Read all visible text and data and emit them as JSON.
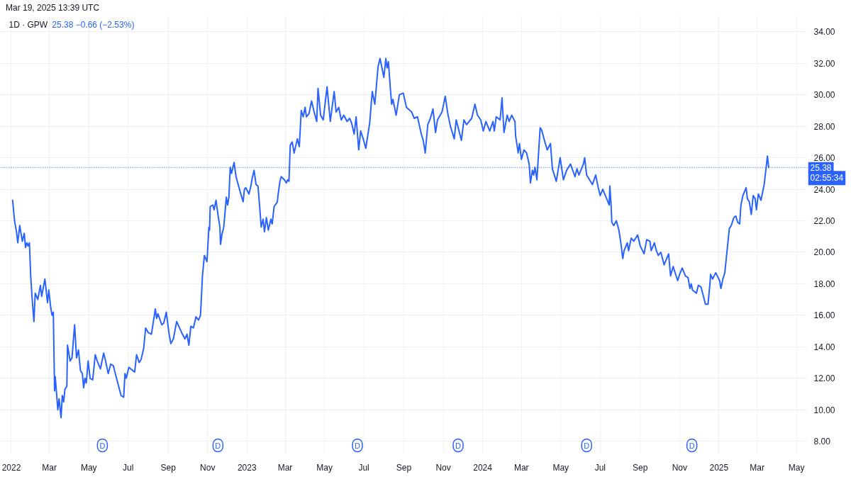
{
  "chart_data": {
    "type": "line",
    "title": "1D · GPW",
    "subtitle": "25.38 −0.66 (−2.53%)",
    "annotations": [
      "Mar 19, 2025 13:39 UTC",
      "02:55:34",
      {
        "text": "D",
        "x": "2022-05-22"
      },
      {
        "text": "D",
        "x": "2022-11-17"
      },
      {
        "text": "D",
        "x": "2023-06-21"
      },
      {
        "text": "D",
        "x": "2023-11-24"
      },
      {
        "text": "D",
        "x": "2024-06-10"
      },
      {
        "text": "D",
        "x": "2024-11-20"
      }
    ],
    "x": [
      "2022-01-03",
      "2022-01-06",
      "2022-01-09",
      "2022-01-11",
      "2022-01-14",
      "2022-01-18",
      "2022-01-21",
      "2022-01-23",
      "2022-01-25",
      "2022-01-27",
      "2022-01-29",
      "2022-01-31",
      "2022-02-02",
      "2022-02-05",
      "2022-02-07",
      "2022-02-11",
      "2022-02-15",
      "2022-02-17",
      "2022-02-22",
      "2022-02-26",
      "2022-02-28",
      "2022-03-03",
      "2022-03-05",
      "2022-03-07",
      "2022-03-09",
      "2022-03-10",
      "2022-03-14",
      "2022-03-16",
      "2022-03-19",
      "2022-03-21",
      "2022-03-23",
      "2022-03-25",
      "2022-03-28",
      "2022-03-29",
      "2022-04-02",
      "2022-04-05",
      "2022-04-09",
      "2022-04-12",
      "2022-04-15",
      "2022-04-18",
      "2022-04-21",
      "2022-04-23",
      "2022-04-25",
      "2022-04-27",
      "2022-04-30",
      "2022-05-03",
      "2022-05-07",
      "2022-05-11",
      "2022-05-14",
      "2022-05-19",
      "2022-05-24",
      "2022-05-27",
      "2022-05-31",
      "2022-06-04",
      "2022-06-08",
      "2022-06-11",
      "2022-06-20",
      "2022-06-24",
      "2022-06-26",
      "2022-06-28",
      "2022-07-02",
      "2022-07-11",
      "2022-07-14",
      "2022-07-18",
      "2022-07-21",
      "2022-07-25",
      "2022-07-28",
      "2022-08-01",
      "2022-08-06",
      "2022-08-09",
      "2022-08-12",
      "2022-08-14",
      "2022-08-16",
      "2022-08-22",
      "2022-08-25",
      "2022-08-29",
      "2022-09-02",
      "2022-09-05",
      "2022-09-09",
      "2022-09-14",
      "2022-09-23",
      "2022-09-27",
      "2022-09-30",
      "2022-10-03",
      "2022-10-06",
      "2022-10-10",
      "2022-10-14",
      "2022-10-18",
      "2022-10-21",
      "2022-10-24",
      "2022-10-27",
      "2022-10-31",
      "2022-11-03",
      "2022-11-04",
      "2022-11-05",
      "2022-11-09",
      "2022-11-11",
      "2022-11-14",
      "2022-11-17",
      "2022-11-20",
      "2022-11-21",
      "2022-11-23",
      "2022-11-26",
      "2022-11-30",
      "2022-12-02",
      "2022-12-04",
      "2022-12-06",
      "2022-12-08",
      "2022-12-12",
      "2022-12-15",
      "2022-12-21",
      "2022-12-26",
      "2022-12-28",
      "2022-12-30",
      "2023-01-04",
      "2023-01-07",
      "2023-01-09",
      "2023-01-12",
      "2023-01-15",
      "2023-01-18",
      "2023-01-21",
      "2023-01-23",
      "2023-01-26",
      "2023-01-28",
      "2023-01-31",
      "2023-02-03",
      "2023-02-07",
      "2023-02-09",
      "2023-02-12",
      "2023-02-17",
      "2023-02-18",
      "2023-02-21",
      "2023-02-23",
      "2023-02-28",
      "2023-03-03",
      "2023-03-05",
      "2023-03-07",
      "2023-03-09",
      "2023-03-12",
      "2023-03-15",
      "2023-03-20",
      "2023-03-23",
      "2023-03-26",
      "2023-03-29",
      "2023-04-01",
      "2023-04-03",
      "2023-04-07",
      "2023-04-11",
      "2023-04-15",
      "2023-04-19",
      "2023-04-21",
      "2023-04-25",
      "2023-04-29",
      "2023-05-05",
      "2023-05-10",
      "2023-05-16",
      "2023-05-19",
      "2023-05-23",
      "2023-05-27",
      "2023-05-31",
      "2023-06-05",
      "2023-06-09",
      "2023-06-12",
      "2023-06-16",
      "2023-06-19",
      "2023-06-23",
      "2023-06-26",
      "2023-06-30",
      "2023-07-04",
      "2023-07-10",
      "2023-07-14",
      "2023-07-18",
      "2023-07-23",
      "2023-07-26",
      "2023-08-01",
      "2023-08-04",
      "2023-08-06",
      "2023-08-08",
      "2023-08-11",
      "2023-08-13",
      "2023-08-15",
      "2023-08-20",
      "2023-08-25",
      "2023-08-31",
      "2023-09-05",
      "2023-09-13",
      "2023-09-17",
      "2023-09-22",
      "2023-09-28",
      "2023-10-01",
      "2023-10-04",
      "2023-10-08",
      "2023-10-12",
      "2023-10-16",
      "2023-10-20",
      "2023-10-23",
      "2023-10-30",
      "2023-11-04",
      "2023-11-08",
      "2023-11-12",
      "2023-11-18",
      "2023-11-21",
      "2023-11-26",
      "2023-11-29",
      "2023-12-03",
      "2023-12-07",
      "2023-12-15",
      "2023-12-20",
      "2023-12-24",
      "2023-12-29",
      "2024-01-02",
      "2024-01-06",
      "2024-01-12",
      "2024-01-17",
      "2024-01-19",
      "2024-01-22",
      "2024-01-28",
      "2024-01-31",
      "2024-02-03",
      "2024-02-08",
      "2024-02-11",
      "2024-02-15",
      "2024-02-20",
      "2024-02-21",
      "2024-02-25",
      "2024-02-27",
      "2024-03-01",
      "2024-03-05",
      "2024-03-09",
      "2024-03-13",
      "2024-03-15",
      "2024-03-18",
      "2024-03-20",
      "2024-03-22",
      "2024-03-25",
      "2024-03-30",
      "2024-04-01",
      "2024-04-05",
      "2024-04-10",
      "2024-04-15",
      "2024-04-18",
      "2024-04-24",
      "2024-04-30",
      "2024-05-05",
      "2024-05-10",
      "2024-05-16",
      "2024-05-23",
      "2024-05-26",
      "2024-05-29",
      "2024-06-05",
      "2024-06-07",
      "2024-06-10",
      "2024-06-19",
      "2024-06-24",
      "2024-06-28",
      "2024-07-01",
      "2024-07-05",
      "2024-07-11",
      "2024-07-15",
      "2024-07-16",
      "2024-07-18",
      "2024-07-19",
      "2024-07-22",
      "2024-07-26",
      "2024-07-30",
      "2024-08-02",
      "2024-08-05",
      "2024-08-07",
      "2024-08-12",
      "2024-08-14",
      "2024-08-18",
      "2024-08-22",
      "2024-08-28",
      "2024-09-01",
      "2024-09-07",
      "2024-09-11",
      "2024-09-16",
      "2024-09-18",
      "2024-09-23",
      "2024-09-26",
      "2024-09-29",
      "2024-10-03",
      "2024-10-08",
      "2024-10-15",
      "2024-10-18",
      "2024-10-22",
      "2024-10-29",
      "2024-11-01",
      "2024-11-05",
      "2024-11-10",
      "2024-11-14",
      "2024-11-17",
      "2024-11-19",
      "2024-11-21",
      "2024-11-27",
      "2024-11-30",
      "2024-12-04",
      "2024-12-08",
      "2024-12-11",
      "2024-12-15",
      "2024-12-18",
      "2024-12-19",
      "2024-12-22",
      "2024-12-27",
      "2025-01-02",
      "2025-01-04",
      "2025-01-07",
      "2025-01-10",
      "2025-01-14",
      "2025-01-17",
      "2025-01-20",
      "2025-01-24",
      "2025-01-27",
      "2025-01-30",
      "2025-02-02",
      "2025-02-04",
      "2025-02-07",
      "2025-02-12",
      "2025-02-14",
      "2025-02-17",
      "2025-02-20",
      "2025-02-23",
      "2025-02-26",
      "2025-02-28",
      "2025-03-03",
      "2025-03-07",
      "2025-03-10",
      "2025-03-12",
      "2025-03-17",
      "2025-03-19"
    ],
    "series": [
      {
        "color": "#2962ff",
        "values": [
          23.3,
          22.0,
          21.3,
          20.6,
          21.7,
          20.7,
          21.2,
          20.3,
          20.6,
          20.4,
          20.6,
          18.5,
          17.2,
          15.6,
          17.4,
          17.0,
          17.9,
          17.2,
          18.3,
          16.8,
          17.6,
          16.5,
          16.0,
          16.2,
          11.2,
          12.1,
          10.0,
          10.7,
          9.5,
          10.9,
          10.5,
          11.3,
          11.5,
          14.1,
          13.1,
          13.3,
          15.4,
          13.3,
          13.8,
          12.5,
          12.3,
          11.4,
          12.0,
          11.7,
          13.1,
          12.0,
          11.9,
          13.5,
          13.1,
          12.6,
          13.6,
          13.1,
          12.3,
          12.9,
          12.8,
          12.3,
          10.9,
          10.8,
          12.3,
          12.0,
          12.7,
          12.4,
          13.5,
          13.0,
          13.2,
          13.9,
          15.2,
          14.9,
          14.8,
          15.6,
          16.4,
          15.8,
          16.1,
          15.4,
          15.5,
          16.2,
          14.9,
          14.2,
          14.5,
          15.6,
          14.8,
          14.5,
          14.8,
          14.1,
          15.3,
          15.2,
          15.9,
          15.7,
          16.0,
          18.5,
          19.8,
          19.4,
          21.6,
          21.4,
          22.9,
          23.0,
          22.7,
          23.3,
          22.4,
          21.6,
          20.5,
          21.1,
          21.6,
          23.5,
          23.0,
          23.5,
          25.4,
          25.0,
          25.7,
          24.8,
          23.9,
          23.2,
          24.0,
          24.1,
          23.7,
          24.2,
          24.7,
          25.2,
          24.3,
          24.2,
          22.7,
          21.6,
          22.1,
          21.3,
          22.2,
          21.4,
          22.1,
          21.8,
          22.9,
          23.2,
          23.6,
          24.5,
          24.8,
          24.6,
          24.4,
          24.6,
          24.5,
          26.8,
          27.0,
          26.3,
          27.2,
          26.7,
          29.0,
          28.6,
          29.2,
          28.6,
          28.8,
          29.6,
          28.9,
          28.3,
          30.4,
          28.7,
          28.4,
          30.5,
          28.3,
          30.2,
          28.9,
          29.2,
          28.4,
          28.7,
          28.3,
          28.5,
          28.2,
          27.5,
          28.6,
          26.5,
          27.7,
          27.2,
          26.6,
          28.2,
          30.2,
          29.4,
          31.8,
          32.3,
          31.1,
          32.3,
          31.7,
          32.1,
          30.4,
          29.4,
          29.7,
          28.7,
          30.0,
          30.1,
          29.2,
          28.9,
          28.5,
          28.6,
          27.5,
          27.1,
          26.3,
          28.1,
          28.5,
          29.1,
          27.6,
          28.4,
          28.9,
          29.9,
          28.8,
          28.0,
          27.2,
          28.4,
          27.6,
          27.1,
          28.4,
          28.1,
          28.5,
          29.4,
          28.7,
          28.4,
          27.7,
          28.3,
          27.7,
          28.3,
          27.7,
          28.6,
          28.4,
          29.8,
          27.6,
          28.7,
          28.3,
          28.7,
          28.3,
          27.4,
          26.3,
          26.9,
          25.9,
          26.5,
          26.3,
          25.6,
          24.4,
          25.2,
          24.9,
          25.4,
          24.6,
          27.9,
          27.8,
          27.2,
          26.5,
          26.9,
          25.3,
          24.5,
          26.0,
          24.6,
          25.2,
          25.6,
          24.8,
          25.3,
          24.9,
          25.6,
          26.0,
          24.9,
          24.3,
          24.9,
          24.1,
          23.6,
          24.0,
          23.4,
          23.0,
          24.2,
          22.9,
          21.9,
          21.7,
          22.0,
          21.4,
          20.6,
          19.6,
          20.1,
          20.6,
          20.1,
          20.9,
          20.7,
          21.1,
          20.4,
          19.9,
          20.8,
          20.7,
          20.1,
          20.6,
          20.1,
          19.8,
          20.0,
          19.2,
          19.9,
          18.5,
          19.1,
          18.2,
          18.6,
          19.0,
          18.5,
          18.4,
          17.7,
          18.0,
          17.6,
          17.4,
          17.9,
          17.8,
          17.2,
          16.7,
          16.7,
          18.0,
          18.6,
          18.3,
          18.7,
          18.2,
          17.7,
          18.3,
          18.7,
          20.3,
          21.5,
          21.7,
          22.2,
          22.3,
          21.9,
          21.8,
          23.0,
          23.6,
          24.1,
          23.4,
          23.2,
          22.4,
          23.6,
          23.4,
          22.7,
          23.7,
          23.3,
          23.9,
          24.3,
          26.1,
          25.38
        ]
      }
    ],
    "xlim": [
      "2021-12-15",
      "2025-05-19"
    ],
    "ylim": [
      7.2,
      35.0
    ],
    "xticks": [
      {
        "value": "2022-01-01",
        "label": "2022"
      },
      {
        "value": "2022-03-01",
        "label": "Mar"
      },
      {
        "value": "2022-05-01",
        "label": "May"
      },
      {
        "value": "2022-07-01",
        "label": "Jul"
      },
      {
        "value": "2022-09-01",
        "label": "Sep"
      },
      {
        "value": "2022-11-01",
        "label": "Nov"
      },
      {
        "value": "2023-01-01",
        "label": "2023"
      },
      {
        "value": "2023-03-01",
        "label": "Mar"
      },
      {
        "value": "2023-05-01",
        "label": "May"
      },
      {
        "value": "2023-07-01",
        "label": "Jul"
      },
      {
        "value": "2023-09-01",
        "label": "Sep"
      },
      {
        "value": "2023-11-01",
        "label": "Nov"
      },
      {
        "value": "2024-01-01",
        "label": "2024"
      },
      {
        "value": "2024-03-01",
        "label": "Mar"
      },
      {
        "value": "2024-05-01",
        "label": "May"
      },
      {
        "value": "2024-07-01",
        "label": "Jul"
      },
      {
        "value": "2024-09-01",
        "label": "Sep"
      },
      {
        "value": "2024-11-01",
        "label": "Nov"
      },
      {
        "value": "2025-01-01",
        "label": "2025"
      },
      {
        "value": "2025-03-01",
        "label": "Mar"
      },
      {
        "value": "2025-05-01",
        "label": "May"
      }
    ],
    "yticks": [
      {
        "value": 8,
        "label": "8.00"
      },
      {
        "value": 10,
        "label": "10.00"
      },
      {
        "value": 12,
        "label": "12.00"
      },
      {
        "value": 14,
        "label": "14.00"
      },
      {
        "value": 16,
        "label": "16.00"
      },
      {
        "value": 18,
        "label": "18.00"
      },
      {
        "value": 20,
        "label": "20.00"
      },
      {
        "value": 22,
        "label": "22.00"
      },
      {
        "value": 24,
        "label": "24.00"
      },
      {
        "value": 26,
        "label": "26.00"
      },
      {
        "value": 28,
        "label": "28.00"
      },
      {
        "value": 30,
        "label": "30.00"
      },
      {
        "value": 32,
        "label": "32.00"
      },
      {
        "value": 34,
        "label": "34.00"
      }
    ],
    "grid": true,
    "ref_lines": [
      {
        "axis": "y",
        "value": 25.38,
        "label": "25.38",
        "color": "#2962ff",
        "line_style": "dotted"
      }
    ]
  }
}
